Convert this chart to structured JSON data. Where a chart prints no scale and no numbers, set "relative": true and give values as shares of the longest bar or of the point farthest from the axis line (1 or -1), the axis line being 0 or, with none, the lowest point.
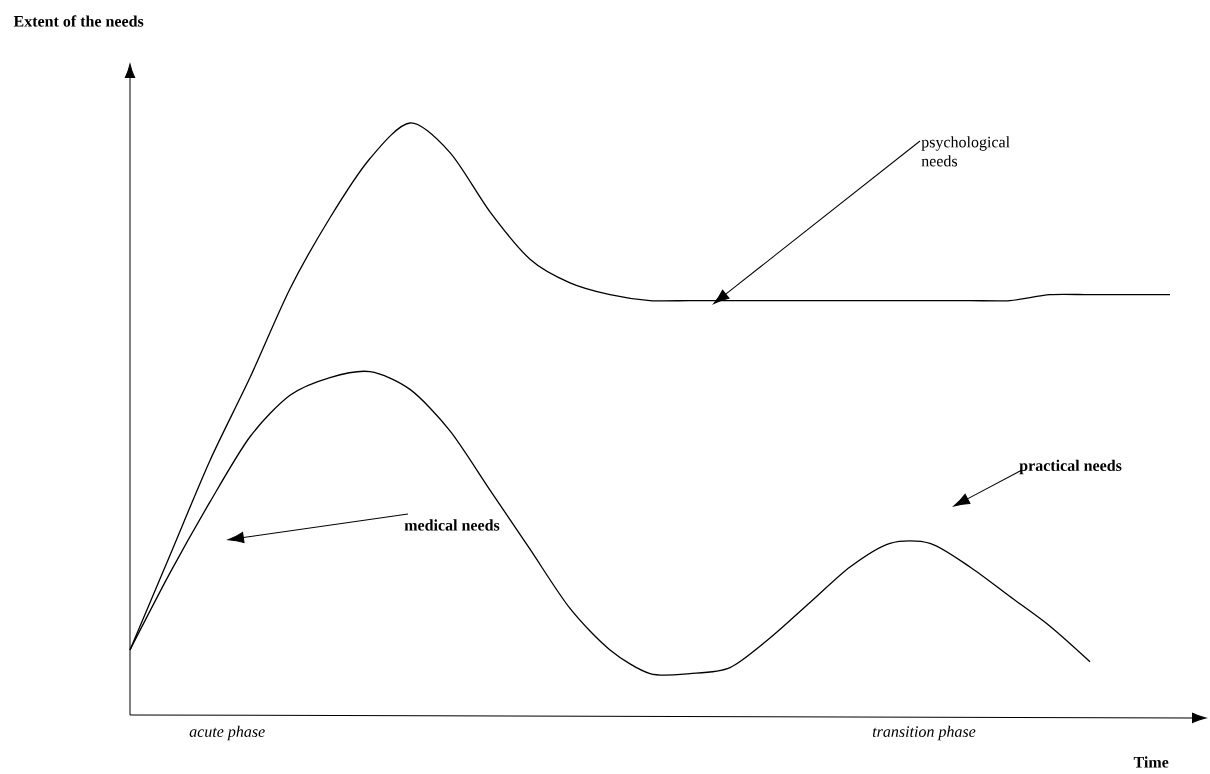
{
  "chart_data": {
    "type": "line",
    "relative": true,
    "title": "Extent of the needs",
    "xlabel": "Time",
    "categories": [
      null,
      null,
      null,
      null,
      null,
      null,
      null,
      null,
      null,
      null,
      null,
      null,
      null,
      null,
      null,
      null,
      null,
      null,
      null,
      null,
      null,
      null,
      null,
      null,
      null,
      null,
      null
    ],
    "series": [
      {
        "color": "#000000",
        "values": [
          0.11,
          0.27,
          0.43,
          0.57,
          0.72,
          0.84,
          0.94,
          1.0,
          0.95,
          0.85,
          0.77,
          0.73,
          0.71,
          0.7,
          0.7,
          0.7,
          0.7,
          0.7,
          0.7,
          0.7,
          0.7,
          0.7,
          0.7,
          0.71,
          0.71,
          0.71,
          0.71
        ]
      },
      {
        "color": "#000000",
        "values": [
          0.11,
          0.24,
          0.36,
          0.47,
          0.54,
          0.57,
          0.58,
          0.55,
          0.48,
          0.38,
          0.28,
          0.18,
          0.11,
          0.07,
          0.07,
          0.08,
          0.13,
          0.19,
          0.25,
          0.29,
          0.29,
          0.25,
          0.2,
          0.15,
          0.09,
          null,
          null
        ]
      }
    ],
    "annotations": [
      "psychological needs",
      "medical needs",
      "practical needs",
      "acute phase",
      "transition phase"
    ]
  }
}
